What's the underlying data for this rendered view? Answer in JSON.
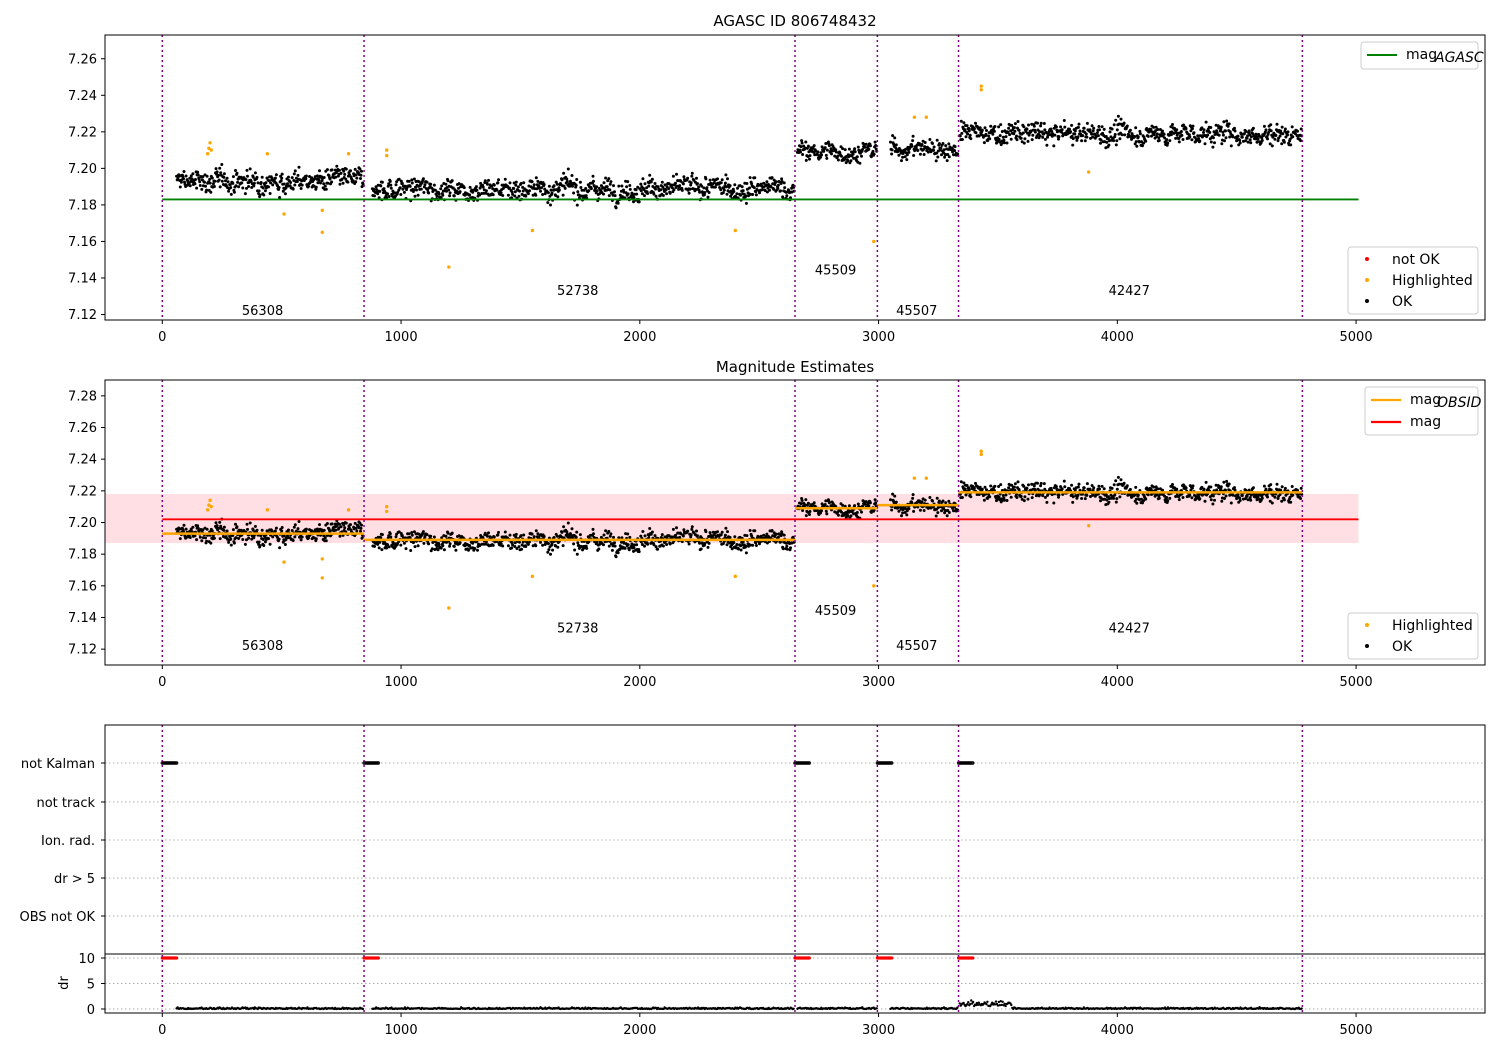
{
  "chart_data": [
    {
      "type": "scatter",
      "title": "AGASC ID 806748432",
      "xlim": [
        -240,
        5540
      ],
      "ylim": [
        7.117,
        7.273
      ],
      "x_ticks": [
        "0",
        "1000",
        "2000",
        "3000",
        "4000",
        "5000"
      ],
      "y_ticks": [
        "7.12",
        "7.14",
        "7.16",
        "7.18",
        "7.20",
        "7.22",
        "7.24",
        "7.26"
      ],
      "legend_top": {
        "position": "top-right",
        "entries": [
          {
            "label": "mag",
            "sub": "AGASC",
            "color": "#008000",
            "kind": "line"
          }
        ]
      },
      "legend_bottom": {
        "position": "bottom-right",
        "entries": [
          {
            "label": "not OK",
            "color": "#ff0000",
            "kind": "point"
          },
          {
            "label": "Highlighted",
            "color": "#ffa500",
            "kind": "point"
          },
          {
            "label": "OK",
            "color": "#000000",
            "kind": "point"
          }
        ]
      },
      "mag_agasc": 7.183,
      "segments": [
        {
          "obsid": "56308",
          "x_start": 0,
          "x_end": 845,
          "data_start": 60,
          "mean": 7.193,
          "spread": 0.007,
          "label_x": 420,
          "label_y": 7.122
        },
        {
          "obsid": "52738",
          "x_start": 845,
          "x_end": 2650,
          "data_start": 880,
          "mean": 7.189,
          "spread": 0.007,
          "label_x": 1740,
          "label_y": 7.133
        },
        {
          "obsid": "45509",
          "x_start": 2650,
          "x_end": 2995,
          "data_start": 2660,
          "mean": 7.209,
          "spread": 0.006,
          "label_x": 2820,
          "label_y": 7.144
        },
        {
          "obsid": "45507",
          "x_start": 2995,
          "x_end": 3335,
          "data_start": 3050,
          "mean": 7.211,
          "spread": 0.006,
          "label_x": 3160,
          "label_y": 7.122
        },
        {
          "obsid": "42427",
          "x_start": 3335,
          "x_end": 4775,
          "data_start": 3340,
          "mean": 7.219,
          "spread": 0.007,
          "label_x": 4050,
          "label_y": 7.133
        }
      ],
      "highlighted": [
        [
          190,
          7.208
        ],
        [
          195,
          7.211
        ],
        [
          200,
          7.214
        ],
        [
          205,
          7.21
        ],
        [
          440,
          7.208
        ],
        [
          510,
          7.175
        ],
        [
          670,
          7.177
        ],
        [
          670,
          7.165
        ],
        [
          780,
          7.208
        ],
        [
          940,
          7.21
        ],
        [
          940,
          7.207
        ],
        [
          1200,
          7.146
        ],
        [
          1550,
          7.166
        ],
        [
          2400,
          7.166
        ],
        [
          2980,
          7.16
        ],
        [
          3150,
          7.228
        ],
        [
          3200,
          7.228
        ],
        [
          3430,
          7.245
        ],
        [
          3430,
          7.243
        ],
        [
          3880,
          7.198
        ]
      ],
      "dividers_x": [
        0,
        845,
        2650,
        2995,
        3335,
        4775
      ]
    },
    {
      "type": "scatter",
      "title": "Magnitude Estimates",
      "xlim": [
        -240,
        5540
      ],
      "ylim": [
        7.11,
        7.29
      ],
      "x_ticks": [
        "0",
        "1000",
        "2000",
        "3000",
        "4000",
        "5000"
      ],
      "y_ticks": [
        "7.12",
        "7.14",
        "7.16",
        "7.18",
        "7.20",
        "7.22",
        "7.24",
        "7.26",
        "7.28"
      ],
      "legend_top": {
        "position": "top-right",
        "entries": [
          {
            "label": "mag",
            "sub": "OBSID",
            "color": "#ffa500",
            "kind": "line"
          },
          {
            "label": "mag",
            "sub": "",
            "color": "#ff0000",
            "kind": "line"
          }
        ]
      },
      "legend_bottom": {
        "position": "bottom-right",
        "entries": [
          {
            "label": "Highlighted",
            "color": "#ffa500",
            "kind": "point"
          },
          {
            "label": "OK",
            "color": "#000000",
            "kind": "point"
          }
        ]
      },
      "mag": 7.202,
      "mag_band": [
        7.187,
        7.218
      ],
      "obsid_means": [
        7.193,
        7.189,
        7.209,
        7.211,
        7.219
      ]
    },
    {
      "type": "scatter",
      "title": "",
      "ylabel": "dr",
      "xlim": [
        -240,
        5540
      ],
      "x_ticks": [
        "0",
        "1000",
        "2000",
        "3000",
        "4000",
        "5000"
      ],
      "flag_rows": [
        "not Kalman",
        "not track",
        "Ion. rad.",
        "dr > 5",
        "OBS not OK"
      ],
      "dr_ticks": [
        "0",
        "5",
        "10"
      ],
      "dr_ylim": [
        -0.5,
        10.5
      ],
      "not_kalman_ranges": [
        [
          0,
          60
        ],
        [
          845,
          905
        ],
        [
          2650,
          2710
        ],
        [
          2995,
          3055
        ],
        [
          3335,
          3395
        ]
      ]
    }
  ]
}
